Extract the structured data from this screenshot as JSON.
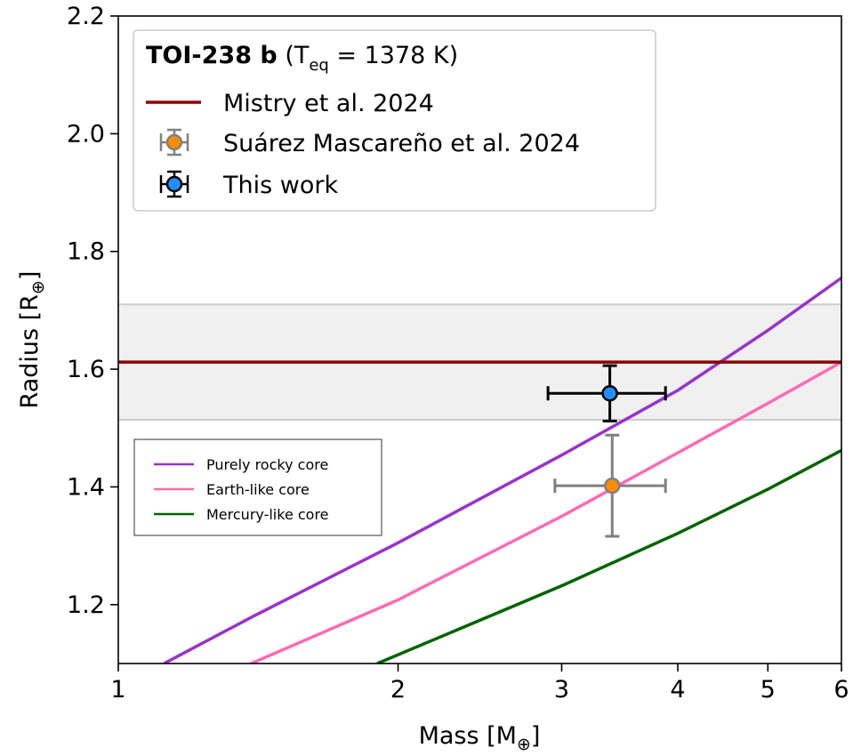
{
  "chart_data": {
    "type": "scatter",
    "xscale": "log",
    "xlabel": "Mass [M",
    "xlabel_unit": "⊕",
    "xlabel_suffix": "]",
    "ylabel": "Radius [R",
    "ylabel_unit": "⊕",
    "ylabel_suffix": "]",
    "xlim": [
      1,
      6
    ],
    "ylim": [
      1.1,
      2.2
    ],
    "xticks": [
      {
        "value": 1,
        "label": "1"
      },
      {
        "value": 2,
        "label": "2"
      },
      {
        "value": 3,
        "label": "3"
      },
      {
        "value": 4,
        "label": "4"
      },
      {
        "value": 5,
        "label": "5"
      },
      {
        "value": 6,
        "label": "6"
      }
    ],
    "yticks": [
      {
        "value": 1.2,
        "label": "1.2"
      },
      {
        "value": 1.4,
        "label": "1.4"
      },
      {
        "value": 1.6,
        "label": "1.6"
      },
      {
        "value": 1.8,
        "label": "1.8"
      },
      {
        "value": 2.0,
        "label": "2.0"
      },
      {
        "value": 2.2,
        "label": "2.2"
      }
    ],
    "title_bold": "TOI-238 b",
    "title_paren_open": "(T",
    "title_sub": "eq",
    "title_rest": " = 1378 K)",
    "radius_band": {
      "name": "Mistry et al. 2024",
      "value": 1.612,
      "lower": 1.514,
      "upper": 1.71,
      "color": "#8b0000",
      "band_color": "#f0f0f0"
    },
    "points": [
      {
        "name": "Suárez Mascareño et al. 2024",
        "mass": 3.4,
        "mass_err_lo": 0.45,
        "mass_err_hi": 0.48,
        "radius": 1.402,
        "radius_err_lo": 0.086,
        "radius_err_hi": 0.086,
        "face_color": "#ff8c00",
        "err_color": "#808080"
      },
      {
        "name": "This work",
        "mass": 3.38,
        "mass_err_lo": 0.48,
        "mass_err_hi": 0.5,
        "radius": 1.559,
        "radius_err_lo": 0.047,
        "radius_err_hi": 0.047,
        "face_color": "#1e90ff",
        "err_color": "#000000"
      }
    ],
    "composition_curves": [
      {
        "name": "Purely rocky core",
        "color": "#9932cc",
        "points": [
          [
            1.12,
            1.1
          ],
          [
            1.4,
            1.181
          ],
          [
            2.0,
            1.305
          ],
          [
            3.0,
            1.454
          ],
          [
            4.0,
            1.564
          ],
          [
            5.0,
            1.666
          ],
          [
            6.0,
            1.755
          ]
        ]
      },
      {
        "name": "Earth-like core",
        "color": "#ff69b4",
        "points": [
          [
            1.39,
            1.1
          ],
          [
            2.0,
            1.208
          ],
          [
            3.0,
            1.35
          ],
          [
            4.0,
            1.458
          ],
          [
            5.0,
            1.542
          ],
          [
            6.0,
            1.612
          ]
        ]
      },
      {
        "name": "Mercury-like core",
        "color": "#006400",
        "points": [
          [
            1.9,
            1.1
          ],
          [
            3.0,
            1.232
          ],
          [
            4.0,
            1.321
          ],
          [
            5.0,
            1.396
          ],
          [
            6.0,
            1.462
          ]
        ]
      }
    ],
    "legend_main_placement": "upper-left",
    "legend_models_placement": "center-left",
    "grid": false
  }
}
